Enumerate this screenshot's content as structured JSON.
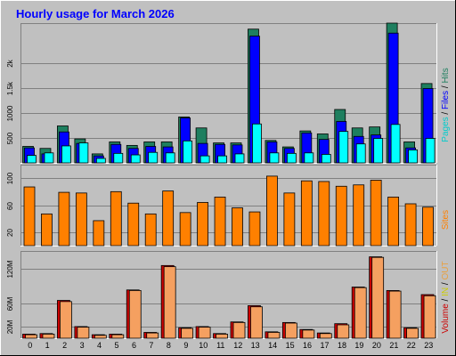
{
  "chart_data": [
    {
      "type": "bar",
      "title": "Hourly usage for March 2026",
      "categories": [
        "0",
        "1",
        "2",
        "3",
        "4",
        "5",
        "6",
        "7",
        "8",
        "9",
        "10",
        "11",
        "12",
        "13",
        "14",
        "15",
        "16",
        "17",
        "18",
        "19",
        "20",
        "21",
        "22",
        "23"
      ],
      "ylim": [
        0,
        2800
      ],
      "y_ticks": [
        500,
        1000,
        1500,
        2000
      ],
      "y_tick_labels": [
        "500",
        "1000",
        "1.5k",
        "2k"
      ],
      "grid": true,
      "legend_text": [
        "Pages",
        " / ",
        "Files",
        " / ",
        "Hits"
      ],
      "series": [
        {
          "name": "Hits",
          "color": "#1e7f5f",
          "values": [
            330,
            290,
            740,
            480,
            180,
            420,
            350,
            420,
            420,
            920,
            700,
            400,
            400,
            2680,
            450,
            320,
            640,
            580,
            1070,
            700,
            720,
            2800,
            420,
            1590
          ]
        },
        {
          "name": "Files",
          "color": "#0000ff",
          "values": [
            300,
            180,
            620,
            390,
            140,
            370,
            290,
            330,
            320,
            900,
            390,
            370,
            360,
            2540,
            420,
            290,
            600,
            470,
            830,
            530,
            560,
            2600,
            300,
            1490
          ]
        },
        {
          "name": "Pages",
          "color": "#00ffff",
          "values": [
            150,
            200,
            340,
            400,
            90,
            190,
            160,
            210,
            200,
            440,
            140,
            140,
            180,
            780,
            200,
            190,
            200,
            170,
            630,
            380,
            490,
            770,
            260,
            490
          ]
        }
      ]
    },
    {
      "type": "bar",
      "categories": [
        "0",
        "1",
        "2",
        "3",
        "4",
        "5",
        "6",
        "7",
        "8",
        "9",
        "10",
        "11",
        "12",
        "13",
        "14",
        "15",
        "16",
        "17",
        "18",
        "19",
        "20",
        "21",
        "22",
        "23"
      ],
      "ylim": [
        0,
        120
      ],
      "y_ticks": [
        20,
        60,
        100
      ],
      "y_tick_labels": [
        "20",
        "60",
        "100"
      ],
      "grid": true,
      "legend_text": [
        "Sites"
      ],
      "series": [
        {
          "name": "Sites",
          "color": "#ff8000",
          "values": [
            87,
            47,
            79,
            78,
            37,
            80,
            63,
            47,
            81,
            49,
            64,
            72,
            56,
            50,
            103,
            78,
            96,
            95,
            88,
            90,
            97,
            72,
            62,
            57
          ]
        }
      ]
    },
    {
      "type": "bar",
      "categories": [
        "0",
        "1",
        "2",
        "3",
        "4",
        "5",
        "6",
        "7",
        "8",
        "9",
        "10",
        "11",
        "12",
        "13",
        "14",
        "15",
        "16",
        "17",
        "18",
        "19",
        "20",
        "21",
        "22",
        "23"
      ],
      "ylim": [
        0,
        150
      ],
      "y_ticks": [
        20,
        60,
        120
      ],
      "y_tick_labels": [
        "20M",
        "60M",
        "120M"
      ],
      "grid": true,
      "legend_text": [
        "Volume",
        " / ",
        "IN",
        " / ",
        "OUT"
      ],
      "series": [
        {
          "name": "Volume",
          "color": "#cc0000",
          "values": [
            7,
            8,
            65,
            20,
            6,
            7,
            83,
            10,
            125,
            18,
            20,
            8,
            28,
            56,
            11,
            27,
            15,
            9,
            25,
            88,
            140,
            82,
            18,
            75
          ]
        },
        {
          "name": "OUT",
          "color": "#f5a060",
          "values": [
            6,
            7,
            63,
            19,
            5,
            6,
            82,
            9,
            123,
            17,
            19,
            7,
            27,
            54,
            10,
            26,
            14,
            8,
            23,
            87,
            139,
            81,
            17,
            73
          ]
        }
      ]
    }
  ],
  "colors": {
    "background": "#c0c0c0",
    "frame_dark": "#808080",
    "frame_light": "#ffffff",
    "title": "#0000ff",
    "legend_pages": "#00cccc",
    "legend_files": "#0000ff",
    "legend_hits": "#1e7f5f",
    "legend_sites": "#ff8000",
    "legend_volume": "#cc0000",
    "legend_in": "#cccc00",
    "legend_out": "#e8a040"
  }
}
